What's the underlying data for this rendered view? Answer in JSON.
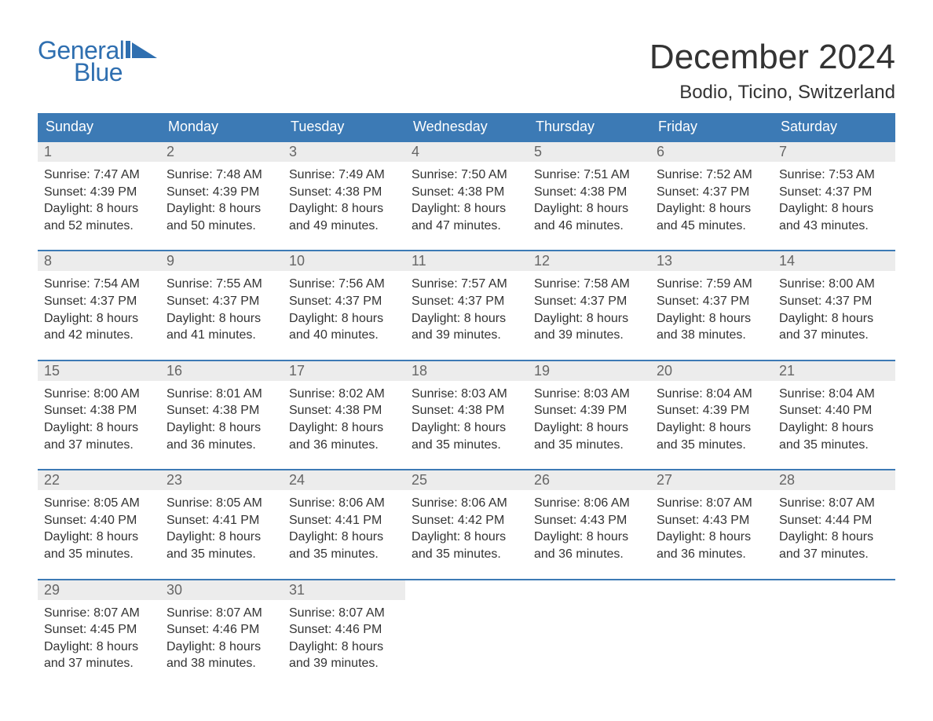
{
  "logo": {
    "word1": "General",
    "word2": "Blue",
    "color": "#2f6fb0"
  },
  "title": "December 2024",
  "location": "Bodio, Ticino, Switzerland",
  "colors": {
    "header_bg": "#3c7ab5",
    "daynum_bg": "#ececec",
    "text": "#333333",
    "muted": "#666666",
    "page_bg": "#ffffff"
  },
  "typography": {
    "title_fontsize": 44,
    "location_fontsize": 24,
    "dow_fontsize": 18,
    "body_fontsize": 16
  },
  "days_of_week": [
    "Sunday",
    "Monday",
    "Tuesday",
    "Wednesday",
    "Thursday",
    "Friday",
    "Saturday"
  ],
  "labels": {
    "sunrise": "Sunrise:",
    "sunset": "Sunset:",
    "daylight": "Daylight:"
  },
  "weeks": [
    [
      {
        "n": "1",
        "sunrise": "7:47 AM",
        "sunset": "4:39 PM",
        "daylight": "8 hours and 52 minutes."
      },
      {
        "n": "2",
        "sunrise": "7:48 AM",
        "sunset": "4:39 PM",
        "daylight": "8 hours and 50 minutes."
      },
      {
        "n": "3",
        "sunrise": "7:49 AM",
        "sunset": "4:38 PM",
        "daylight": "8 hours and 49 minutes."
      },
      {
        "n": "4",
        "sunrise": "7:50 AM",
        "sunset": "4:38 PM",
        "daylight": "8 hours and 47 minutes."
      },
      {
        "n": "5",
        "sunrise": "7:51 AM",
        "sunset": "4:38 PM",
        "daylight": "8 hours and 46 minutes."
      },
      {
        "n": "6",
        "sunrise": "7:52 AM",
        "sunset": "4:37 PM",
        "daylight": "8 hours and 45 minutes."
      },
      {
        "n": "7",
        "sunrise": "7:53 AM",
        "sunset": "4:37 PM",
        "daylight": "8 hours and 43 minutes."
      }
    ],
    [
      {
        "n": "8",
        "sunrise": "7:54 AM",
        "sunset": "4:37 PM",
        "daylight": "8 hours and 42 minutes."
      },
      {
        "n": "9",
        "sunrise": "7:55 AM",
        "sunset": "4:37 PM",
        "daylight": "8 hours and 41 minutes."
      },
      {
        "n": "10",
        "sunrise": "7:56 AM",
        "sunset": "4:37 PM",
        "daylight": "8 hours and 40 minutes."
      },
      {
        "n": "11",
        "sunrise": "7:57 AM",
        "sunset": "4:37 PM",
        "daylight": "8 hours and 39 minutes."
      },
      {
        "n": "12",
        "sunrise": "7:58 AM",
        "sunset": "4:37 PM",
        "daylight": "8 hours and 39 minutes."
      },
      {
        "n": "13",
        "sunrise": "7:59 AM",
        "sunset": "4:37 PM",
        "daylight": "8 hours and 38 minutes."
      },
      {
        "n": "14",
        "sunrise": "8:00 AM",
        "sunset": "4:37 PM",
        "daylight": "8 hours and 37 minutes."
      }
    ],
    [
      {
        "n": "15",
        "sunrise": "8:00 AM",
        "sunset": "4:38 PM",
        "daylight": "8 hours and 37 minutes."
      },
      {
        "n": "16",
        "sunrise": "8:01 AM",
        "sunset": "4:38 PM",
        "daylight": "8 hours and 36 minutes."
      },
      {
        "n": "17",
        "sunrise": "8:02 AM",
        "sunset": "4:38 PM",
        "daylight": "8 hours and 36 minutes."
      },
      {
        "n": "18",
        "sunrise": "8:03 AM",
        "sunset": "4:38 PM",
        "daylight": "8 hours and 35 minutes."
      },
      {
        "n": "19",
        "sunrise": "8:03 AM",
        "sunset": "4:39 PM",
        "daylight": "8 hours and 35 minutes."
      },
      {
        "n": "20",
        "sunrise": "8:04 AM",
        "sunset": "4:39 PM",
        "daylight": "8 hours and 35 minutes."
      },
      {
        "n": "21",
        "sunrise": "8:04 AM",
        "sunset": "4:40 PM",
        "daylight": "8 hours and 35 minutes."
      }
    ],
    [
      {
        "n": "22",
        "sunrise": "8:05 AM",
        "sunset": "4:40 PM",
        "daylight": "8 hours and 35 minutes."
      },
      {
        "n": "23",
        "sunrise": "8:05 AM",
        "sunset": "4:41 PM",
        "daylight": "8 hours and 35 minutes."
      },
      {
        "n": "24",
        "sunrise": "8:06 AM",
        "sunset": "4:41 PM",
        "daylight": "8 hours and 35 minutes."
      },
      {
        "n": "25",
        "sunrise": "8:06 AM",
        "sunset": "4:42 PM",
        "daylight": "8 hours and 35 minutes."
      },
      {
        "n": "26",
        "sunrise": "8:06 AM",
        "sunset": "4:43 PM",
        "daylight": "8 hours and 36 minutes."
      },
      {
        "n": "27",
        "sunrise": "8:07 AM",
        "sunset": "4:43 PM",
        "daylight": "8 hours and 36 minutes."
      },
      {
        "n": "28",
        "sunrise": "8:07 AM",
        "sunset": "4:44 PM",
        "daylight": "8 hours and 37 minutes."
      }
    ],
    [
      {
        "n": "29",
        "sunrise": "8:07 AM",
        "sunset": "4:45 PM",
        "daylight": "8 hours and 37 minutes."
      },
      {
        "n": "30",
        "sunrise": "8:07 AM",
        "sunset": "4:46 PM",
        "daylight": "8 hours and 38 minutes."
      },
      {
        "n": "31",
        "sunrise": "8:07 AM",
        "sunset": "4:46 PM",
        "daylight": "8 hours and 39 minutes."
      },
      null,
      null,
      null,
      null
    ]
  ]
}
